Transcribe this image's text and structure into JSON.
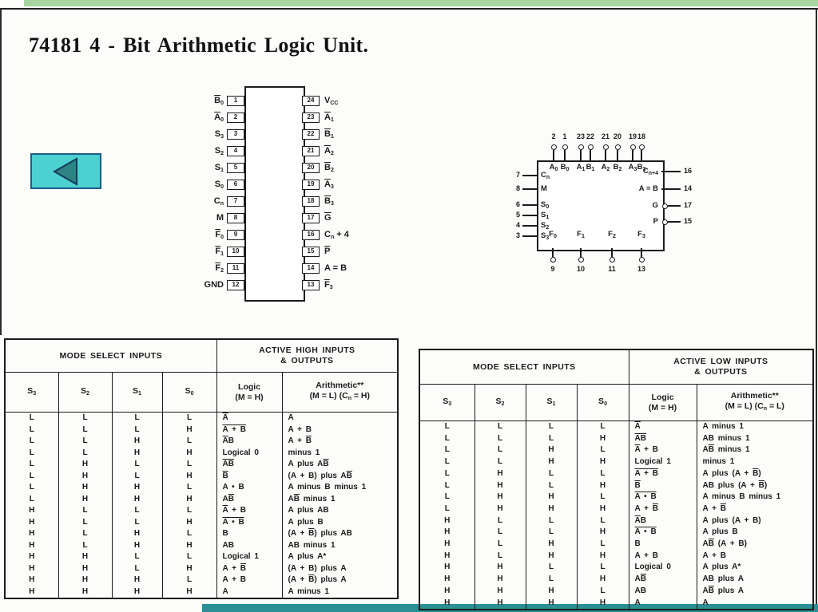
{
  "slide": {
    "title": "74181 4 - Bit Arithmetic Logic Unit.",
    "back_button": {
      "icon": "left-triangle"
    },
    "colors": {
      "top_bar": "#a6d5a0",
      "bottom_bar": "#2a9093",
      "button_fill": "#4cd0d0",
      "button_border": "#1d5c86",
      "arrow_fill": "#2e8282",
      "arrow_border": "#123c5a",
      "ink": "#1b1b1b"
    }
  },
  "dip": {
    "left_pins": [
      {
        "label": "[B]_{0}",
        "num": "1"
      },
      {
        "label": "[A]_{0}",
        "num": "2"
      },
      {
        "label": "S_{3}",
        "num": "3"
      },
      {
        "label": "S_{2}",
        "num": "4"
      },
      {
        "label": "S_{1}",
        "num": "5"
      },
      {
        "label": "S_{0}",
        "num": "6"
      },
      {
        "label": "C_{n}",
        "num": "7"
      },
      {
        "label": "M",
        "num": "8"
      },
      {
        "label": "[F]_{0}",
        "num": "9"
      },
      {
        "label": "[F]_{1}",
        "num": "10"
      },
      {
        "label": "[F]_{2}",
        "num": "11"
      },
      {
        "label": "GND",
        "num": "12"
      }
    ],
    "right_pins": [
      {
        "num": "24",
        "label": "V_{CC}"
      },
      {
        "num": "23",
        "label": "[A]_{1}"
      },
      {
        "num": "22",
        "label": "[B]_{1}"
      },
      {
        "num": "21",
        "label": "[A]_{2}"
      },
      {
        "num": "20",
        "label": "[B]_{2}"
      },
      {
        "num": "19",
        "label": "[A]_{3}"
      },
      {
        "num": "18",
        "label": "[B]_{3}"
      },
      {
        "num": "17",
        "label": "[G]"
      },
      {
        "num": "16",
        "label": "C_{n} + 4"
      },
      {
        "num": "15",
        "label": "[P]"
      },
      {
        "num": "14",
        "label": "A = B"
      },
      {
        "num": "13",
        "label": "[F]_{3}"
      }
    ]
  },
  "logic_symbol": {
    "top_pins": [
      {
        "num": "2",
        "label": "A_{0}"
      },
      {
        "num": "1",
        "label": "B_{0}"
      },
      {
        "num": "23",
        "label": "A_{1}"
      },
      {
        "num": "22",
        "label": "B_{1}"
      },
      {
        "num": "21",
        "label": "A_{2}"
      },
      {
        "num": "20",
        "label": "B_{2}"
      },
      {
        "num": "19",
        "label": "A_{3}"
      },
      {
        "num": "18",
        "label": "B_{3}"
      }
    ],
    "left_pins": [
      {
        "num": "7",
        "label": "C_{n}"
      },
      {
        "num": "8",
        "label": "M"
      },
      {
        "num": "6",
        "label": "S_{0}"
      },
      {
        "num": "5",
        "label": "S_{1}"
      },
      {
        "num": "4",
        "label": "S_{2}"
      },
      {
        "num": "3",
        "label": "S_{3}"
      }
    ],
    "right_pins": [
      {
        "label": "C_{n+4}",
        "num": "16",
        "bubble": false
      },
      {
        "label": "A = B",
        "num": "14",
        "bubble": false
      },
      {
        "label": "G",
        "num": "17",
        "bubble": true
      },
      {
        "label": "P",
        "num": "15",
        "bubble": true
      }
    ],
    "bottom_pins": [
      {
        "label": "F_{0}",
        "num": "9"
      },
      {
        "label": "F_{1}",
        "num": "10"
      },
      {
        "label": "F_{2}",
        "num": "11"
      },
      {
        "label": "F_{3}",
        "num": "13"
      }
    ]
  },
  "tables": {
    "active_high": {
      "mode_header": "MODE SELECT INPUTS",
      "io_header": "ACTIVE HIGH INPUTS\n& OUTPUTS",
      "col_headers": [
        "S_{3}",
        "S_{2}",
        "S_{1}",
        "S_{0}"
      ],
      "logic_header": "Logic\n(M = H)",
      "arith_header": "Arithmetic**\n(M = L) (C_{n} = H)",
      "rows": [
        {
          "s": [
            "L",
            "L",
            "L",
            "L"
          ],
          "logic": "[A]",
          "arith": "A"
        },
        {
          "s": [
            "L",
            "L",
            "L",
            "H"
          ],
          "logic": "[A + B]",
          "arith": "A + B"
        },
        {
          "s": [
            "L",
            "L",
            "H",
            "L"
          ],
          "logic": "[A]B",
          "arith": "A + [B]"
        },
        {
          "s": [
            "L",
            "L",
            "H",
            "H"
          ],
          "logic": "Logical 0",
          "arith": "minus 1"
        },
        {
          "s": [
            "L",
            "H",
            "L",
            "L"
          ],
          "logic": "[AB]",
          "arith": "A plus A[B]"
        },
        {
          "s": [
            "L",
            "H",
            "L",
            "H"
          ],
          "logic": "[B]",
          "arith": "(A + B) plus A[B]"
        },
        {
          "s": [
            "L",
            "H",
            "H",
            "L"
          ],
          "logic": "A • B",
          "arith": "A minus B minus 1"
        },
        {
          "s": [
            "L",
            "H",
            "H",
            "H"
          ],
          "logic": "A[B]",
          "arith": "A[B] minus 1"
        },
        {
          "s": [
            "H",
            "L",
            "L",
            "L"
          ],
          "logic": "[A] + B",
          "arith": "A plus AB"
        },
        {
          "s": [
            "H",
            "L",
            "L",
            "H"
          ],
          "logic": "[A • B]",
          "arith": "A plus B"
        },
        {
          "s": [
            "H",
            "L",
            "H",
            "L"
          ],
          "logic": "B",
          "arith": "(A + [B]) plus AB"
        },
        {
          "s": [
            "H",
            "L",
            "H",
            "H"
          ],
          "logic": "AB",
          "arith": "AB minus 1"
        },
        {
          "s": [
            "H",
            "H",
            "L",
            "L"
          ],
          "logic": "Logical 1",
          "arith": "A plus A*"
        },
        {
          "s": [
            "H",
            "H",
            "L",
            "H"
          ],
          "logic": "A + [B]",
          "arith": "(A + B) plus A"
        },
        {
          "s": [
            "H",
            "H",
            "H",
            "L"
          ],
          "logic": "A + B",
          "arith": "(A + [B]) plus A"
        },
        {
          "s": [
            "H",
            "H",
            "H",
            "H"
          ],
          "logic": "A",
          "arith": "A minus 1"
        }
      ]
    },
    "active_low": {
      "mode_header": "MODE SELECT INPUTS",
      "io_header": "ACTIVE LOW INPUTS\n& OUTPUTS",
      "col_headers": [
        "S_{3}",
        "S_{2}",
        "S_{1}",
        "S_{0}"
      ],
      "logic_header": "Logic\n(M = H)",
      "arith_header": "Arithmetic**\n(M = L) (C_{n} = L)",
      "rows": [
        {
          "s": [
            "L",
            "L",
            "L",
            "L"
          ],
          "logic": "[A]",
          "arith": "A minus 1"
        },
        {
          "s": [
            "L",
            "L",
            "L",
            "H"
          ],
          "logic": "[AB]",
          "arith": "AB minus 1"
        },
        {
          "s": [
            "L",
            "L",
            "H",
            "L"
          ],
          "logic": "[A] + B",
          "arith": "A[B] minus 1"
        },
        {
          "s": [
            "L",
            "L",
            "H",
            "H"
          ],
          "logic": "Logical 1",
          "arith": "minus 1"
        },
        {
          "s": [
            "L",
            "H",
            "L",
            "L"
          ],
          "logic": "[A + B]",
          "arith": "A plus (A + [B])"
        },
        {
          "s": [
            "L",
            "H",
            "L",
            "H"
          ],
          "logic": "[B]",
          "arith": "AB plus (A + [B])"
        },
        {
          "s": [
            "L",
            "H",
            "H",
            "L"
          ],
          "logic": "[A • B]",
          "arith": "A minus B minus 1"
        },
        {
          "s": [
            "L",
            "H",
            "H",
            "H"
          ],
          "logic": "A + [B]",
          "arith": "A + [B]"
        },
        {
          "s": [
            "H",
            "L",
            "L",
            "L"
          ],
          "logic": "[A]B",
          "arith": "A plus (A + B)"
        },
        {
          "s": [
            "H",
            "L",
            "L",
            "H"
          ],
          "logic": "[A • B]",
          "arith": "A plus B"
        },
        {
          "s": [
            "H",
            "L",
            "H",
            "L"
          ],
          "logic": "B",
          "arith": "A[B] (A + B)"
        },
        {
          "s": [
            "H",
            "L",
            "H",
            "H"
          ],
          "logic": "A + B",
          "arith": "A + B"
        },
        {
          "s": [
            "H",
            "H",
            "L",
            "L"
          ],
          "logic": "Logical 0",
          "arith": "A plus A*"
        },
        {
          "s": [
            "H",
            "H",
            "L",
            "H"
          ],
          "logic": "A[B]",
          "arith": "AB plus A"
        },
        {
          "s": [
            "H",
            "H",
            "H",
            "L"
          ],
          "logic": "AB",
          "arith": "A[B] plus A"
        },
        {
          "s": [
            "H",
            "H",
            "H",
            "H"
          ],
          "logic": "A",
          "arith": "A"
        }
      ]
    }
  }
}
